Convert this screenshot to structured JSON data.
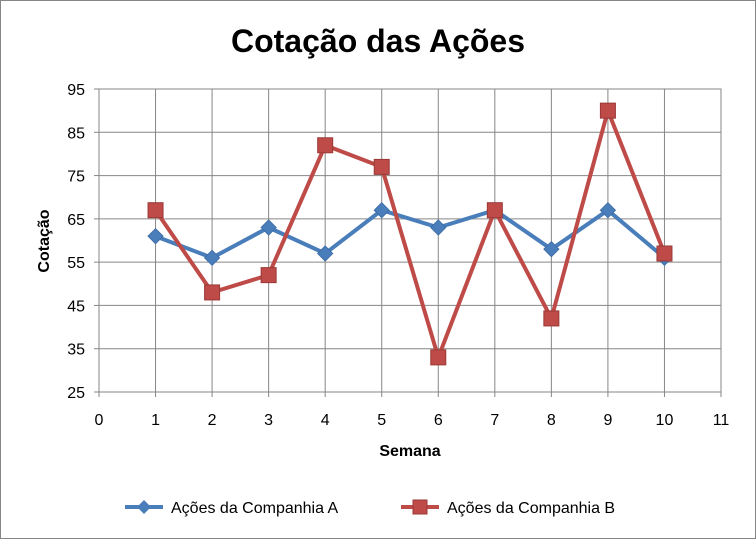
{
  "chart_data": {
    "type": "line",
    "title": "Cotação das Ações",
    "xlabel": "Semana",
    "ylabel": "Cotação",
    "xlim": [
      0,
      11
    ],
    "ylim": [
      25,
      95
    ],
    "x_ticks": [
      "0",
      "1",
      "2",
      "3",
      "4",
      "5",
      "6",
      "7",
      "8",
      "9",
      "10",
      "11"
    ],
    "y_ticks": [
      "25",
      "35",
      "45",
      "55",
      "65",
      "75",
      "85",
      "95"
    ],
    "grid": true,
    "legend_position": "bottom",
    "x": [
      1,
      2,
      3,
      4,
      5,
      6,
      7,
      8,
      9,
      10
    ],
    "series": [
      {
        "name": "Ações da Companhia A",
        "values": [
          61,
          56,
          63,
          57,
          67,
          63,
          67,
          58,
          67,
          56
        ],
        "color": "#4a7ebb",
        "marker": "diamond"
      },
      {
        "name": "Ações da Companhia B",
        "values": [
          67,
          48,
          52,
          82,
          77,
          33,
          67,
          42,
          90,
          57
        ],
        "color": "#be4b48",
        "marker": "square"
      }
    ]
  }
}
